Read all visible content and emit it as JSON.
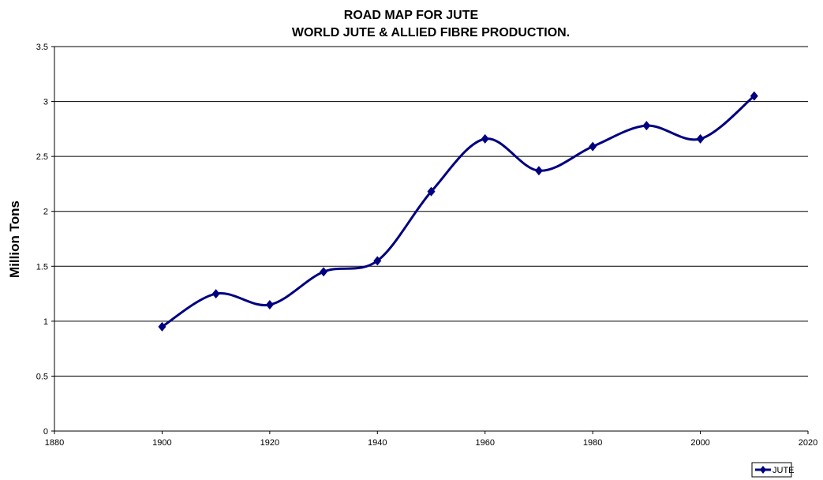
{
  "chart_data": {
    "type": "line",
    "title": [
      "ROAD MAP FOR JUTE",
      "WORLD JUTE & ALLIED FIBRE PRODUCTION."
    ],
    "y_label": "Million Tons",
    "x": [
      1900,
      1910,
      1920,
      1930,
      1940,
      1950,
      1960,
      1970,
      1980,
      1990,
      2000,
      2010
    ],
    "series": [
      {
        "name": "JUTE",
        "color": "#000080",
        "values": [
          0.95,
          1.25,
          1.15,
          1.45,
          1.55,
          2.18,
          2.66,
          2.37,
          2.59,
          2.78,
          2.66,
          3.05
        ]
      }
    ],
    "xlim": [
      1880,
      2020
    ],
    "xticks": [
      1880,
      1900,
      1920,
      1940,
      1960,
      1980,
      2000,
      2020
    ],
    "ylim": [
      0,
      3.5
    ],
    "yticks": [
      0,
      0.5,
      1,
      1.5,
      2,
      2.5,
      3,
      3.5
    ],
    "grid": true,
    "smooth": true,
    "legend": "bottom-right"
  }
}
